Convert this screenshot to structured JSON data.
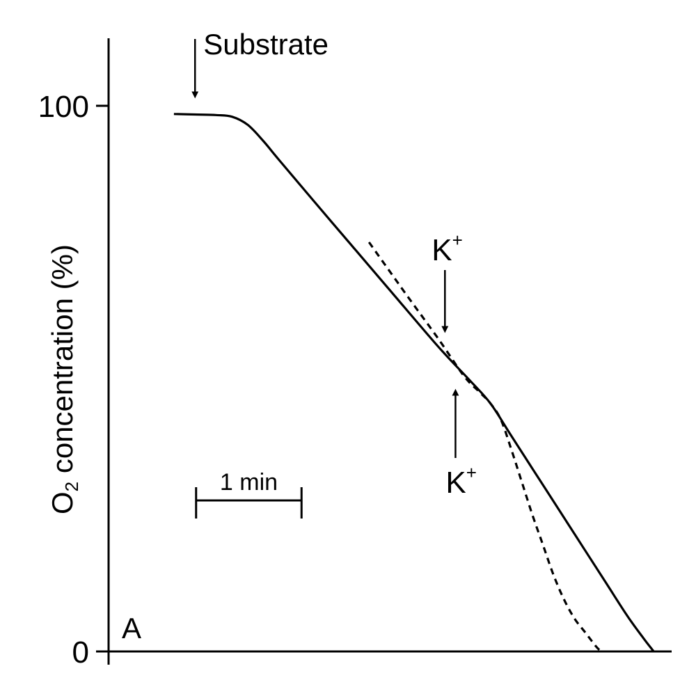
{
  "chart_data": {
    "type": "line",
    "panel_label": "A",
    "ylabel_prefix": "O",
    "ylabel_subscript": "2",
    "ylabel_suffix": " concentration (%)",
    "yticks": [
      {
        "value": 0,
        "label": "0"
      },
      {
        "value": 100,
        "label": "100"
      }
    ],
    "ylim": [
      0,
      100
    ],
    "x_unit": "min",
    "xlim": [
      -0.62,
      4.72
    ],
    "scale_bar": {
      "length": 1,
      "label": "1 min"
    },
    "series": [
      {
        "style": "solid",
        "x": [
          0,
          0.2,
          0.4,
          0.55,
          0.7,
          0.85,
          1.0,
          1.5,
          2.0,
          2.5,
          2.8,
          3.0,
          3.2,
          3.5,
          3.8,
          4.1,
          4.3,
          4.45,
          4.55
        ],
        "y": [
          98.5,
          98.4,
          98.3,
          98.0,
          96.5,
          93.5,
          90.0,
          78.6,
          67.3,
          56.0,
          49.8,
          45.5,
          39.5,
          30.5,
          21.5,
          12.5,
          6.5,
          2.5,
          0
        ]
      },
      {
        "style": "dashed",
        "x": [
          1.85,
          2.2,
          2.5,
          2.75,
          2.9,
          3.0,
          3.1,
          3.2,
          3.3,
          3.4,
          3.5,
          3.6,
          3.7,
          3.8,
          3.9,
          4.0,
          4.05
        ],
        "y": [
          75,
          65.5,
          57.5,
          50.5,
          47.5,
          45.5,
          42.5,
          37.0,
          31.0,
          25.0,
          19.5,
          14.0,
          9.5,
          6.0,
          3.5,
          1.0,
          0
        ]
      }
    ],
    "annotations": [
      {
        "text": "Substrate",
        "x": 0.2,
        "y": 102,
        "direction": "down"
      },
      {
        "text": "K",
        "superscript": "+",
        "x": 2.57,
        "y": 59,
        "direction": "down"
      },
      {
        "text": "K",
        "superscript": "+",
        "x": 2.67,
        "y": 47.5,
        "direction": "up"
      }
    ]
  }
}
